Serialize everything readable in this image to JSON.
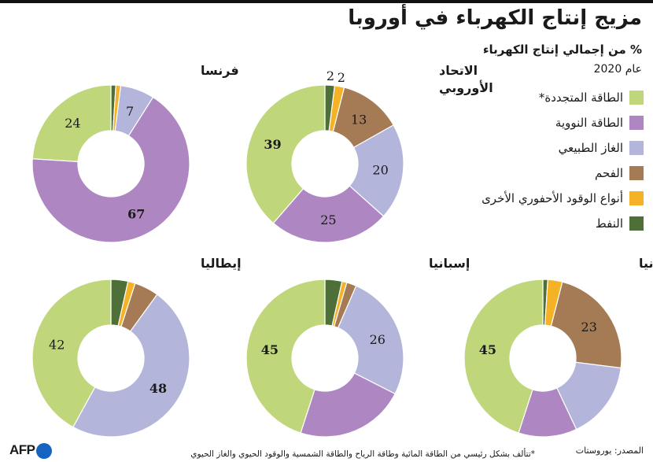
{
  "title": "مزيج إنتاج الكهرباء في أوروبا",
  "subtitle": "% من إجمالي إنتاج الكهرباء",
  "year_label": "عام 2020",
  "colors": {
    "renewable": "#bfd77a",
    "nuclear": "#ad86c2",
    "gas": "#b3b6da",
    "coal": "#a57b55",
    "other_fossil": "#f6b226",
    "oil": "#4e6f37"
  },
  "legend": [
    {
      "key": "renewable",
      "label": "الطاقة المتجددة*"
    },
    {
      "key": "nuclear",
      "label": "الطاقة النووية"
    },
    {
      "key": "gas",
      "label": "الغاز الطبيعي"
    },
    {
      "key": "coal",
      "label": "الفحم"
    },
    {
      "key": "other_fossil",
      "label": "أنواع الوقود الأحفوري الأخرى"
    },
    {
      "key": "oil",
      "label": "النفط"
    }
  ],
  "chart_data": [
    {
      "type": "pie",
      "title": "فرنسا",
      "slices": [
        {
          "key": "oil",
          "value": 1
        },
        {
          "key": "other_fossil",
          "value": 1
        },
        {
          "key": "gas",
          "value": 7,
          "label": "7"
        },
        {
          "key": "nuclear",
          "value": 67,
          "label": "67",
          "bold": true
        },
        {
          "key": "renewable",
          "value": 24,
          "label": "24"
        }
      ]
    },
    {
      "type": "pie",
      "title": "الاتحاد الأوروبي",
      "slices": [
        {
          "key": "oil",
          "value": 2,
          "label": "2",
          "outside": true
        },
        {
          "key": "other_fossil",
          "value": 2,
          "label": "2",
          "outside": true
        },
        {
          "key": "coal",
          "value": 13,
          "label": "13"
        },
        {
          "key": "gas",
          "value": 20,
          "label": "20"
        },
        {
          "key": "nuclear",
          "value": 25,
          "label": "25"
        },
        {
          "key": "renewable",
          "value": 39,
          "label": "39",
          "bold": true
        }
      ]
    },
    {
      "type": "pie",
      "title": "إيطاليا",
      "slices": [
        {
          "key": "oil",
          "value": 3.5
        },
        {
          "key": "other_fossil",
          "value": 1.5
        },
        {
          "key": "coal",
          "value": 5
        },
        {
          "key": "gas",
          "value": 48,
          "label": "48",
          "bold": true
        },
        {
          "key": "renewable",
          "value": 42,
          "label": "42"
        }
      ]
    },
    {
      "type": "pie",
      "title": "إسبانيا",
      "slices": [
        {
          "key": "oil",
          "value": 3.5
        },
        {
          "key": "other_fossil",
          "value": 1
        },
        {
          "key": "coal",
          "value": 2
        },
        {
          "key": "gas",
          "value": 26,
          "label": "26"
        },
        {
          "key": "nuclear",
          "value": 22.5
        },
        {
          "key": "renewable",
          "value": 45,
          "label": "45",
          "bold": true
        }
      ]
    },
    {
      "type": "pie",
      "title": "ألمانيا",
      "slices": [
        {
          "key": "oil",
          "value": 1
        },
        {
          "key": "other_fossil",
          "value": 3
        },
        {
          "key": "coal",
          "value": 23,
          "label": "23"
        },
        {
          "key": "gas",
          "value": 16
        },
        {
          "key": "nuclear",
          "value": 12
        },
        {
          "key": "renewable",
          "value": 45,
          "label": "45",
          "bold": true
        }
      ]
    }
  ],
  "footer": {
    "note": "*تتألف بشكل رئيسي من الطاقة المائية وطاقة الرياح والطاقة الشمسية والوقود الحيوي والغاز الحيوي",
    "source": "المصدر: يوروستات",
    "logo": "AFP"
  }
}
